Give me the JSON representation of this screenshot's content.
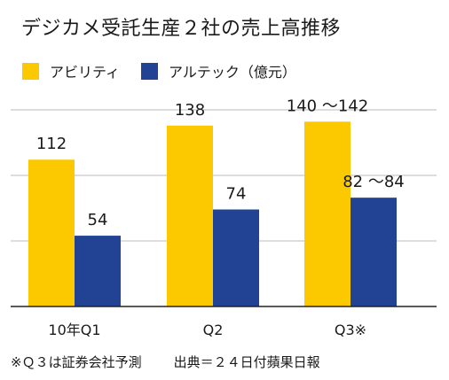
{
  "title": "デジカメ受託生産２社の売上高推移",
  "footnote": "※Ｑ３は証券会社予測",
  "source": "出典＝２４日付蘋果日報",
  "colors": {
    "abilitie": "#fcc800",
    "altek": "#224393",
    "grid": "#bbbbbb",
    "axis": "#222222"
  },
  "chart_data": {
    "type": "bar",
    "categories": [
      "10年Q1",
      "Q2",
      "Q3※"
    ],
    "series": [
      {
        "name": "アビリティ",
        "values": [
          112,
          138,
          141
        ],
        "labels": [
          "112",
          "138",
          "140 〜142"
        ]
      },
      {
        "name": "アルテック（億元）",
        "values": [
          54,
          74,
          83
        ],
        "labels": [
          "54",
          "74",
          "82 〜84"
        ]
      }
    ],
    "ylim": [
      0,
      160
    ],
    "grid": true,
    "legend": "top-left"
  }
}
